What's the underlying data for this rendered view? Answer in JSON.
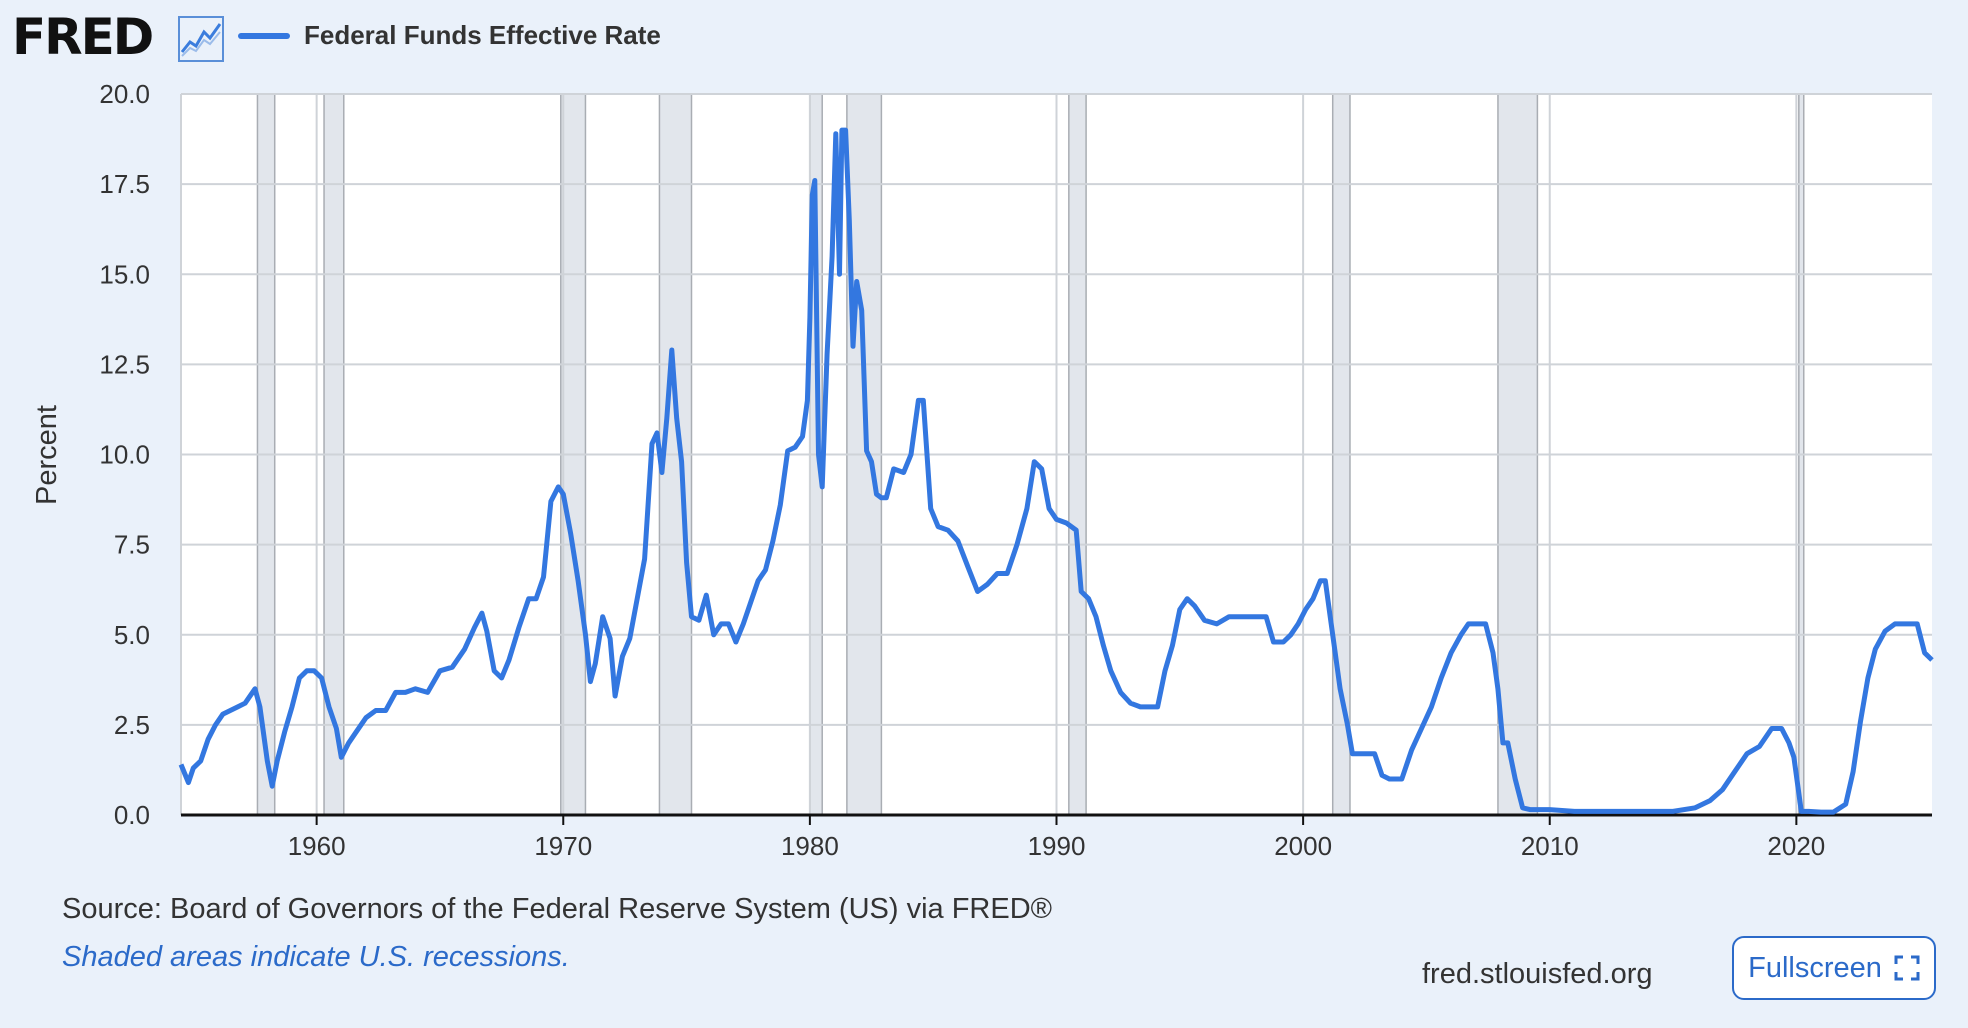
{
  "header": {
    "logo_text": "FRED",
    "logo_icon": "line-chart-icon",
    "series_label": "Federal Funds Effective Rate"
  },
  "footer": {
    "source": "Source: Board of Governors of the Federal Reserve System (US) via FRED®",
    "note": "Shaded areas indicate U.S. recessions.",
    "site": "fred.stlouisfed.org",
    "fullscreen_label": "Fullscreen",
    "fullscreen_icon": "expand-icon"
  },
  "colors": {
    "series": "#3377e0",
    "recession": "#e2e6ec",
    "background": "#eaf1fa",
    "plot": "#ffffff",
    "accent": "#2b6ac9"
  },
  "chart_data": {
    "type": "line",
    "title": "Federal Funds Effective Rate",
    "ylabel": "Percent",
    "xlabel": "",
    "xlim": [
      1954.5,
      2025.5
    ],
    "ylim": [
      0,
      20
    ],
    "x_ticks": [
      1960,
      1970,
      1980,
      1990,
      2000,
      2010,
      2020
    ],
    "x_tick_labels": [
      "1960",
      "1970",
      "1980",
      "1990",
      "2000",
      "2010",
      "2020"
    ],
    "y_ticks": [
      0,
      2.5,
      5,
      7.5,
      10,
      12.5,
      15,
      17.5,
      20
    ],
    "y_tick_labels": [
      "0.0",
      "2.5",
      "5.0",
      "7.5",
      "10.0",
      "12.5",
      "15.0",
      "17.5",
      "20.0"
    ],
    "grid": true,
    "legend": "top-left",
    "recessions": [
      [
        1957.6,
        1958.3
      ],
      [
        1960.3,
        1961.1
      ],
      [
        1969.9,
        1970.9
      ],
      [
        1973.9,
        1975.2
      ],
      [
        1980.0,
        1980.5
      ],
      [
        1981.5,
        1982.9
      ],
      [
        1990.5,
        1991.2
      ],
      [
        2001.2,
        2001.9
      ],
      [
        2007.9,
        2009.5
      ],
      [
        2020.1,
        2020.3
      ]
    ],
    "series": [
      {
        "x": [
          1954.5,
          1954.8,
          1955.0,
          1955.3,
          1955.6,
          1955.9,
          1956.2,
          1956.5,
          1956.8,
          1957.1,
          1957.5,
          1957.7,
          1958.0,
          1958.2,
          1958.4,
          1958.7,
          1959.0,
          1959.3,
          1959.6,
          1959.9,
          1960.2,
          1960.5,
          1960.8,
          1961.0,
          1961.3,
          1961.6,
          1962.0,
          1962.4,
          1962.8,
          1963.2,
          1963.6,
          1964.0,
          1964.5,
          1965.0,
          1965.5,
          1966.0,
          1966.4,
          1966.7,
          1966.9,
          1967.2,
          1967.5,
          1967.8,
          1968.2,
          1968.6,
          1968.9,
          1969.2,
          1969.5,
          1969.8,
          1970.0,
          1970.3,
          1970.6,
          1970.9,
          1971.1,
          1971.3,
          1971.6,
          1971.9,
          1972.1,
          1972.4,
          1972.7,
          1973.0,
          1973.3,
          1973.6,
          1973.8,
          1974.0,
          1974.2,
          1974.4,
          1974.6,
          1974.8,
          1975.0,
          1975.2,
          1975.5,
          1975.8,
          1976.1,
          1976.4,
          1976.7,
          1977.0,
          1977.3,
          1977.6,
          1977.9,
          1978.2,
          1978.5,
          1978.8,
          1979.1,
          1979.4,
          1979.7,
          1979.9,
          1980.0,
          1980.1,
          1980.2,
          1980.35,
          1980.5,
          1980.7,
          1980.9,
          1981.05,
          1981.2,
          1981.3,
          1981.45,
          1981.6,
          1981.75,
          1981.9,
          1982.1,
          1982.3,
          1982.5,
          1982.7,
          1982.9,
          1983.1,
          1983.4,
          1983.8,
          1984.1,
          1984.4,
          1984.6,
          1984.9,
          1985.2,
          1985.6,
          1986.0,
          1986.4,
          1986.8,
          1987.2,
          1987.6,
          1988.0,
          1988.4,
          1988.8,
          1989.1,
          1989.4,
          1989.7,
          1990.0,
          1990.4,
          1990.8,
          1991.0,
          1991.3,
          1991.6,
          1991.9,
          1992.2,
          1992.6,
          1993.0,
          1993.4,
          1993.8,
          1994.1,
          1994.4,
          1994.7,
          1995.0,
          1995.3,
          1995.6,
          1996.0,
          1996.5,
          1997.0,
          1997.5,
          1998.0,
          1998.5,
          1998.8,
          1999.2,
          1999.5,
          1999.8,
          2000.1,
          2000.4,
          2000.7,
          2000.9,
          2001.1,
          2001.3,
          2001.5,
          2001.8,
          2002.0,
          2002.5,
          2002.9,
          2003.2,
          2003.5,
          2004.0,
          2004.4,
          2004.8,
          2005.2,
          2005.6,
          2006.0,
          2006.4,
          2006.7,
          2007.0,
          2007.4,
          2007.7,
          2007.9,
          2008.1,
          2008.3,
          2008.6,
          2008.9,
          2009.2,
          2010.0,
          2011.0,
          2012.0,
          2013.0,
          2014.0,
          2015.0,
          2015.9,
          2016.5,
          2017.0,
          2017.5,
          2018.0,
          2018.5,
          2019.0,
          2019.4,
          2019.7,
          2019.9,
          2020.2,
          2020.5,
          2021.0,
          2021.5,
          2022.0,
          2022.3,
          2022.6,
          2022.9,
          2023.2,
          2023.6,
          2024.0,
          2024.3,
          2024.6,
          2024.9,
          2025.2,
          2025.5
        ],
        "y": [
          1.4,
          0.9,
          1.3,
          1.5,
          2.1,
          2.5,
          2.8,
          2.9,
          3.0,
          3.1,
          3.5,
          3.0,
          1.5,
          0.8,
          1.5,
          2.3,
          3.0,
          3.8,
          4.0,
          4.0,
          3.8,
          3.0,
          2.4,
          1.6,
          2.0,
          2.3,
          2.7,
          2.9,
          2.9,
          3.4,
          3.4,
          3.5,
          3.4,
          4.0,
          4.1,
          4.6,
          5.2,
          5.6,
          5.1,
          4.0,
          3.8,
          4.3,
          5.2,
          6.0,
          6.0,
          6.6,
          8.7,
          9.1,
          8.9,
          7.8,
          6.5,
          5.0,
          3.7,
          4.2,
          5.5,
          4.9,
          3.3,
          4.4,
          4.9,
          6.0,
          7.1,
          10.3,
          10.6,
          9.5,
          11.0,
          12.9,
          11.0,
          9.8,
          7.0,
          5.5,
          5.4,
          6.1,
          5.0,
          5.3,
          5.3,
          4.8,
          5.3,
          5.9,
          6.5,
          6.8,
          7.6,
          8.6,
          10.1,
          10.2,
          10.5,
          11.5,
          13.8,
          17.2,
          17.6,
          10.0,
          9.1,
          12.8,
          15.5,
          18.9,
          15.0,
          19.0,
          19.0,
          16.5,
          13.0,
          14.8,
          14.0,
          10.1,
          9.8,
          8.9,
          8.8,
          8.8,
          9.6,
          9.5,
          10.0,
          11.5,
          11.5,
          8.5,
          8.0,
          7.9,
          7.6,
          6.9,
          6.2,
          6.4,
          6.7,
          6.7,
          7.5,
          8.5,
          9.8,
          9.6,
          8.5,
          8.2,
          8.1,
          7.9,
          6.2,
          6.0,
          5.5,
          4.7,
          4.0,
          3.4,
          3.1,
          3.0,
          3.0,
          3.0,
          4.0,
          4.7,
          5.7,
          6.0,
          5.8,
          5.4,
          5.3,
          5.5,
          5.5,
          5.5,
          5.5,
          4.8,
          4.8,
          5.0,
          5.3,
          5.7,
          6.0,
          6.5,
          6.5,
          5.5,
          4.5,
          3.5,
          2.5,
          1.7,
          1.7,
          1.7,
          1.1,
          1.0,
          1.0,
          1.8,
          2.4,
          3.0,
          3.8,
          4.5,
          5.0,
          5.3,
          5.3,
          5.3,
          4.5,
          3.5,
          2.0,
          2.0,
          1.0,
          0.2,
          0.15,
          0.15,
          0.1,
          0.1,
          0.1,
          0.1,
          0.1,
          0.2,
          0.4,
          0.7,
          1.2,
          1.7,
          1.9,
          2.4,
          2.4,
          2.0,
          1.6,
          0.1,
          0.1,
          0.08,
          0.08,
          0.3,
          1.2,
          2.6,
          3.8,
          4.6,
          5.1,
          5.3,
          5.3,
          5.3,
          5.3,
          4.5,
          4.3
        ]
      }
    ]
  }
}
